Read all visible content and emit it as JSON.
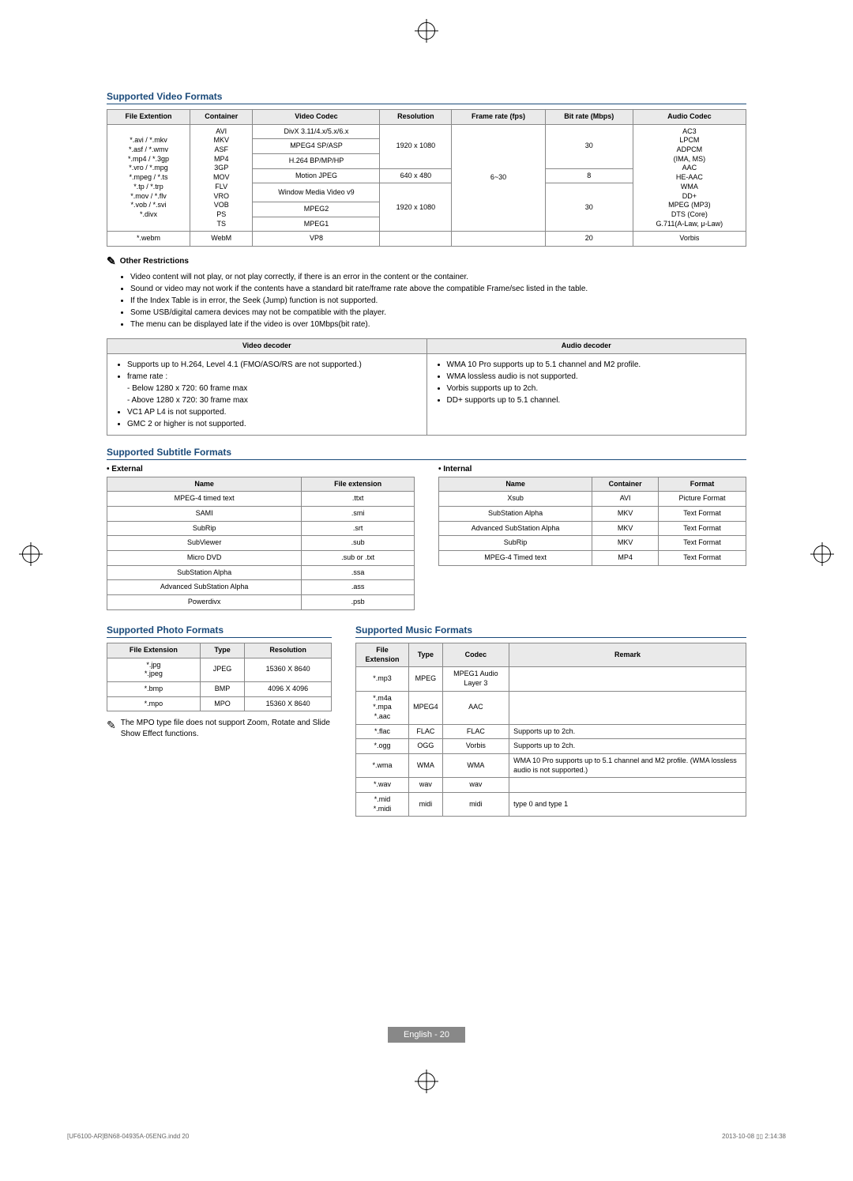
{
  "video": {
    "title": "Supported Video Formats",
    "headers": [
      "File Extention",
      "Container",
      "Video Codec",
      "Resolution",
      "Frame rate (fps)",
      "Bit rate (Mbps)",
      "Audio Codec"
    ],
    "extensions": "*.avi / *.mkv\n*.asf / *.wmv\n*.mp4 / *.3gp\n*.vro / *.mpg\n*.mpeg / *.ts\n*.tp / *.trp\n*.mov / *.flv\n*.vob / *.svi\n*.divx",
    "containers": "AVI\nMKV\nASF\nMP4\n3GP\nMOV\nFLV\nVRO\nVOB\nPS\nTS",
    "codec1": "DivX 3.11/4.x/5.x/6.x",
    "codec2": "MPEG4 SP/ASP",
    "codec3": "H.264 BP/MP/HP",
    "codec4": "Motion JPEG",
    "codec5": "Window Media Video v9",
    "codec6": "MPEG2",
    "codec7": "MPEG1",
    "res1": "1920 x 1080",
    "res2": "640 x 480",
    "res3": "1920 x 1080",
    "fps": "6~30",
    "br1": "30",
    "br2": "8",
    "br3": "30",
    "audio_codecs": "AC3\nLPCM\nADPCM\n(IMA, MS)\nAAC\nHE-AAC\nWMA\nDD+\nMPEG (MP3)\nDTS (Core)\nG.711(A-Law, μ-Law)",
    "webm_ext": "*.webm",
    "webm_cont": "WebM",
    "webm_codec": "VP8",
    "webm_br": "20",
    "webm_audio": "Vorbis"
  },
  "restrictions": {
    "title": "Other Restrictions",
    "items": [
      "Video content will not play, or not play correctly, if there is an error in the content or the container.",
      "Sound or video may not work if the contents have a standard bit rate/frame rate above the compatible Frame/sec listed in the table.",
      "If the Index Table is in error, the Seek (Jump) function is not supported.",
      "Some USB/digital camera devices may not be compatible with the player.",
      "The menu can be displayed late if the video is over 10Mbps(bit rate)."
    ]
  },
  "decoder": {
    "vhead": "Video decoder",
    "ahead": "Audio decoder",
    "vitems": [
      "Supports up to H.264, Level 4.1 (FMO/ASO/RS are not supported.)",
      "frame rate :\n  - Below 1280 x 720: 60 frame max\n  - Above 1280 x 720: 30 frame max",
      "VC1 AP L4 is not supported.",
      "GMC 2 or higher is not supported."
    ],
    "aitems": [
      "WMA 10 Pro supports up to 5.1 channel and M2 profile.",
      "WMA lossless audio is not supported.",
      "Vorbis supports up to 2ch.",
      "DD+ supports up to 5.1 channel."
    ]
  },
  "subtitle": {
    "title": "Supported Subtitle Formats",
    "ext_label": "External",
    "int_label": "Internal",
    "ext_headers": [
      "Name",
      "File extension"
    ],
    "ext_rows": [
      [
        "MPEG-4 timed text",
        ".ttxt"
      ],
      [
        "SAMI",
        ".smi"
      ],
      [
        "SubRip",
        ".srt"
      ],
      [
        "SubViewer",
        ".sub"
      ],
      [
        "Micro DVD",
        ".sub or .txt"
      ],
      [
        "SubStation Alpha",
        ".ssa"
      ],
      [
        "Advanced SubStation Alpha",
        ".ass"
      ],
      [
        "Powerdivx",
        ".psb"
      ]
    ],
    "int_headers": [
      "Name",
      "Container",
      "Format"
    ],
    "int_rows": [
      [
        "Xsub",
        "AVI",
        "Picture Format"
      ],
      [
        "SubStation Alpha",
        "MKV",
        "Text Format"
      ],
      [
        "Advanced SubStation Alpha",
        "MKV",
        "Text Format"
      ],
      [
        "SubRip",
        "MKV",
        "Text Format"
      ],
      [
        "MPEG-4 Timed text",
        "MP4",
        "Text Format"
      ]
    ]
  },
  "photo": {
    "title": "Supported Photo Formats",
    "headers": [
      "File Extension",
      "Type",
      "Resolution"
    ],
    "rows": [
      [
        "*.jpg\n*.jpeg",
        "JPEG",
        "15360 X 8640"
      ],
      [
        "*.bmp",
        "BMP",
        "4096 X 4096"
      ],
      [
        "*.mpo",
        "MPO",
        "15360 X 8640"
      ]
    ],
    "note": "The MPO type file does not support Zoom, Rotate and Slide Show Effect functions."
  },
  "music": {
    "title": "Supported Music Formats",
    "headers": [
      "File Extension",
      "Type",
      "Codec",
      "Remark"
    ],
    "rows": [
      [
        "*.mp3",
        "MPEG",
        "MPEG1 Audio Layer 3",
        ""
      ],
      [
        "*.m4a\n*.mpa\n*.aac",
        "MPEG4",
        "AAC",
        ""
      ],
      [
        "*.flac",
        "FLAC",
        "FLAC",
        "Supports up to 2ch."
      ],
      [
        "*.ogg",
        "OGG",
        "Vorbis",
        "Supports up to 2ch."
      ],
      [
        "*.wma",
        "WMA",
        "WMA",
        "WMA 10 Pro supports up to 5.1 channel and M2 profile. (WMA lossless audio is not supported.)"
      ],
      [
        "*.wav",
        "wav",
        "wav",
        ""
      ],
      [
        "*.mid\n*.midi",
        "midi",
        "midi",
        "type 0 and type 1"
      ]
    ]
  },
  "footer": {
    "page": "English - 20",
    "doc": "[UF6100-AR]BN68-04935A-05ENG.indd   20",
    "time": "2013-10-08   ▯▯ 2:14:38"
  }
}
